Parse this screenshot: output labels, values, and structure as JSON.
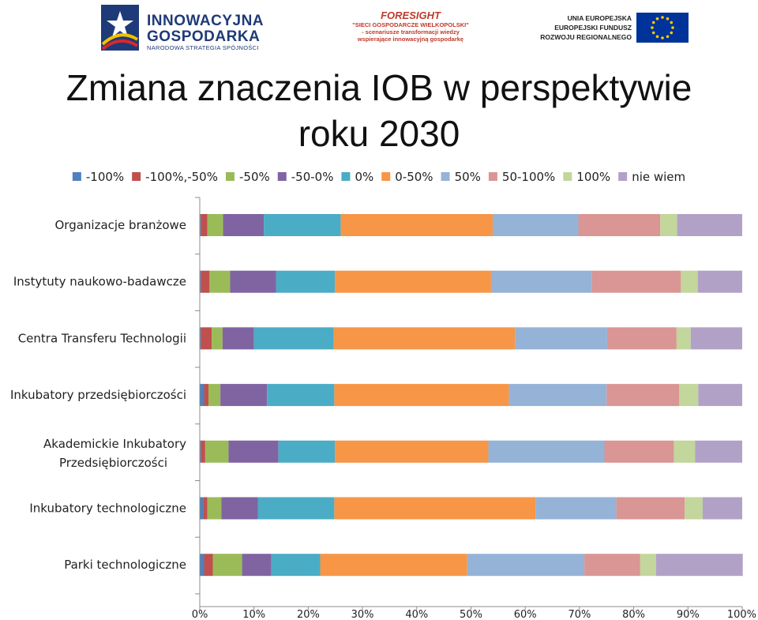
{
  "header": {
    "logo_left": {
      "line1": "INNOWACYJNA",
      "line2": "GOSPODARKA",
      "line3": "NARODOWA STRATEGIA SPÓJNOŚCI"
    },
    "logo_center": {
      "line1": "FORESIGHT",
      "line2": "\"SIECI GOSPODARCZE WIELKOPOLSKI\"",
      "line3": "- scenariusze transformacji wiedzy",
      "line4": "wspierające innowacyjną gospodarkę"
    },
    "logo_right": {
      "line1": "UNIA EUROPEJSKA",
      "line2": "EUROPEJSKI FUNDUSZ",
      "line3": "ROZWOJU REGIONALNEGO"
    }
  },
  "title": {
    "line1": "Zmiana znaczenia IOB w perspektywie",
    "line2": "roku 2030"
  },
  "chart_data": {
    "type": "bar",
    "orientation": "horizontal",
    "stacked": "percent",
    "title": "Zmiana znaczenia IOB w perspektywie roku 2030",
    "categories": [
      "Organizacje branżowe",
      "Instytuty naukowo-badawcze",
      "Centra Transferu Technologii",
      "Inkubatory przedsiębiorczości",
      "Akademickie Inkubatory Przedsiębiorczości",
      "Inkubatory technologiczne",
      "Parki technologiczne"
    ],
    "category_lines": [
      [
        "Organizacje branżowe"
      ],
      [
        "Instytuty naukowo-badawcze"
      ],
      [
        "Centra Transferu Technologii"
      ],
      [
        "Inkubatory przedsiębiorczości"
      ],
      [
        "Akademickie Inkubatory",
        "Przedsiębiorczości"
      ],
      [
        "Inkubatory technologiczne"
      ],
      [
        "Parki technologiczne"
      ]
    ],
    "xlim": [
      0,
      100
    ],
    "xticks": [
      "0%",
      "10%",
      "20%",
      "30%",
      "40%",
      "50%",
      "60%",
      "70%",
      "80%",
      "90%",
      "100%"
    ],
    "legend_position": "top",
    "grid": false,
    "series": [
      {
        "name": "-100%",
        "color": "#4f81bd",
        "values": [
          0.2,
          0.2,
          0.2,
          0.8,
          0.2,
          0.6,
          0.8
        ]
      },
      {
        "name": "-100%,-50%",
        "color": "#c0504d",
        "values": [
          1.2,
          1.6,
          2.0,
          0.8,
          0.8,
          0.8,
          1.6
        ]
      },
      {
        "name": "-50%",
        "color": "#9bbb59",
        "values": [
          2.9,
          3.8,
          2.0,
          2.2,
          4.3,
          2.6,
          5.4
        ]
      },
      {
        "name": "-50-0%",
        "color": "#8064a2",
        "values": [
          7.5,
          8.5,
          5.8,
          8.6,
          9.2,
          6.7,
          5.4
        ]
      },
      {
        "name": "0%",
        "color": "#4bacc6",
        "values": [
          14.2,
          10.8,
          14.7,
          12.4,
          10.4,
          14.1,
          9.0
        ]
      },
      {
        "name": "0-50%",
        "color": "#f79646",
        "values": [
          28.0,
          28.8,
          33.4,
          32.2,
          28.3,
          37.1,
          27.1
        ]
      },
      {
        "name": "50%",
        "color": "#95b3d7",
        "values": [
          15.8,
          18.6,
          17.0,
          18.0,
          21.4,
          14.9,
          21.6
        ]
      },
      {
        "name": "50-100%",
        "color": "#d99694",
        "values": [
          15.1,
          16.4,
          12.8,
          13.4,
          12.8,
          12.6,
          10.3
        ]
      },
      {
        "name": "100%",
        "color": "#c3d69b",
        "values": [
          3.1,
          3.1,
          2.6,
          3.5,
          3.9,
          3.3,
          2.9
        ]
      },
      {
        "name": "nie wiem",
        "color": "#b2a1c7",
        "values": [
          12.0,
          8.2,
          9.5,
          8.1,
          8.7,
          7.3,
          16.0
        ]
      }
    ]
  }
}
